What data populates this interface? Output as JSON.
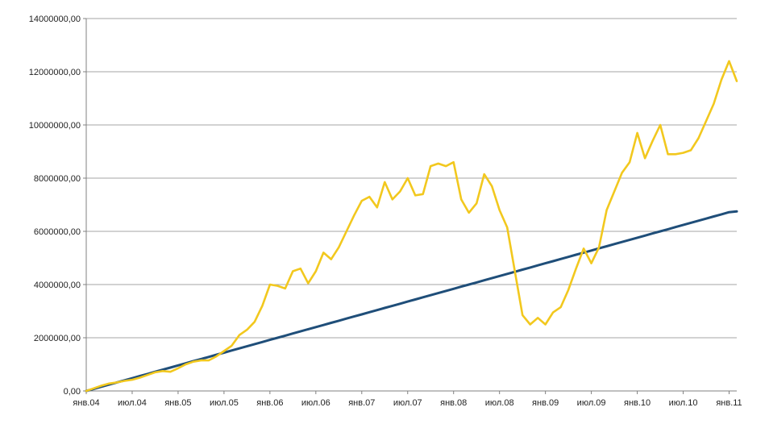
{
  "chart_data": {
    "type": "line",
    "title": "",
    "xlabel": "",
    "ylabel": "",
    "ylim": [
      0,
      14000000
    ],
    "y_ticks": [
      "0,00",
      "2000000,00",
      "4000000,00",
      "6000000,00",
      "8000000,00",
      "10000000,00",
      "12000000,00",
      "14000000,00"
    ],
    "x_tick_labels": [
      "янв.04",
      "июл.04",
      "янв.05",
      "июл.05",
      "янв.06",
      "июл.06",
      "янв.07",
      "июл.07",
      "янв.08",
      "июл.08",
      "янв.09",
      "июл.09",
      "янв.10",
      "июл.10",
      "янв.11"
    ],
    "x_start": "2004-01",
    "x_end": "2011-02",
    "grid": "horizontal",
    "legend": "none",
    "series": [
      {
        "color": "#1f4e79",
        "values": [
          0,
          80000,
          160000,
          240000,
          320000,
          400000,
          480000,
          560000,
          640000,
          720000,
          800000,
          880000,
          960000,
          1040000,
          1120000,
          1200000,
          1280000,
          1360000,
          1440000,
          1520000,
          1600000,
          1680000,
          1760000,
          1840000,
          1920000,
          2000000,
          2080000,
          2160000,
          2240000,
          2320000,
          2400000,
          2480000,
          2560000,
          2640000,
          2720000,
          2800000,
          2880000,
          2960000,
          3040000,
          3120000,
          3200000,
          3280000,
          3360000,
          3440000,
          3520000,
          3600000,
          3680000,
          3760000,
          3840000,
          3920000,
          4000000,
          4080000,
          4160000,
          4240000,
          4320000,
          4400000,
          4480000,
          4560000,
          4640000,
          4720000,
          4800000,
          4880000,
          4960000,
          5040000,
          5120000,
          5200000,
          5280000,
          5360000,
          5440000,
          5520000,
          5600000,
          5680000,
          5760000,
          5840000,
          5920000,
          6000000,
          6080000,
          6160000,
          6240000,
          6320000,
          6400000,
          6480000,
          6560000,
          6640000,
          6720000,
          6750000
        ]
      },
      {
        "color": "#f2c81e",
        "values": [
          0,
          100000,
          200000,
          280000,
          320000,
          380000,
          420000,
          500000,
          600000,
          700000,
          750000,
          720000,
          850000,
          1000000,
          1100000,
          1150000,
          1150000,
          1300000,
          1500000,
          1700000,
          2100000,
          2300000,
          2600000,
          3200000,
          4000000,
          3950000,
          3850000,
          4500000,
          4600000,
          4050000,
          4500000,
          5200000,
          4950000,
          5400000,
          6000000,
          6600000,
          7150000,
          7300000,
          6900000,
          7850000,
          7200000,
          7500000,
          8000000,
          7350000,
          7400000,
          8450000,
          8550000,
          8450000,
          8600000,
          7200000,
          6700000,
          7050000,
          8150000,
          7700000,
          6800000,
          6150000,
          4500000,
          2850000,
          2500000,
          2750000,
          2500000,
          2950000,
          3150000,
          3800000,
          4600000,
          5350000,
          4800000,
          5400000,
          6800000,
          7500000,
          8200000,
          8600000,
          9700000,
          8750000,
          9400000,
          10000000,
          8900000,
          8900000,
          8950000,
          9050000,
          9500000,
          10150000,
          10800000,
          11700000,
          12400000,
          11650000
        ]
      }
    ]
  }
}
